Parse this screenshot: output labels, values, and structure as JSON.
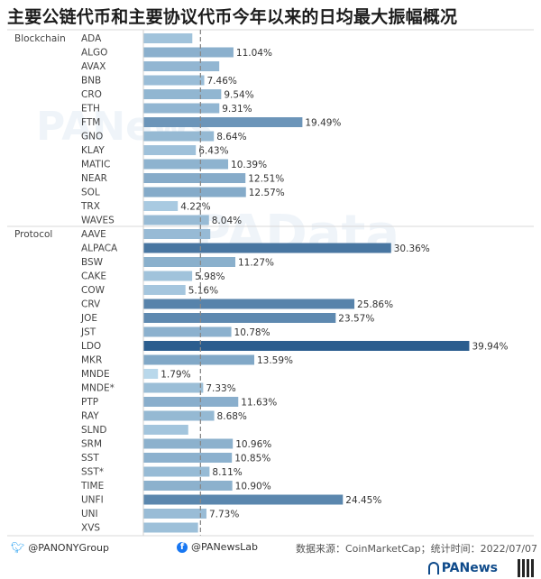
{
  "title": "主要公链代币和主要协议代币今年以来的日均最大振幅概况",
  "footer": {
    "twitter": "@PANONYGroup",
    "facebook": "@PANewsLab",
    "source": "数据来源：CoinMarketCap；统计时间：2022/07/07"
  },
  "brand": {
    "logo": "PANews"
  },
  "icons": {
    "twitter": "bird-icon",
    "facebook": "facebook-icon",
    "qr": "qr-code-icon"
  },
  "watermarks": [
    "PANews",
    "PAData"
  ],
  "colors": {
    "max": "#2b5d8e",
    "min": "#b9d8eb",
    "gridline": "#d9d9d9",
    "refline": "#888888"
  },
  "chart_data": {
    "type": "bar",
    "orientation": "horizontal",
    "title": "主要公链代币和主要协议代币今年以来的日均最大振幅概况",
    "reference_line": 7.0,
    "xlim": [
      0,
      40
    ],
    "groups": [
      {
        "name": "Blockchain",
        "items": [
          {
            "label": "ADA",
            "value": 6.0,
            "value_label": ""
          },
          {
            "label": "ALGO",
            "value": 11.04,
            "value_label": "11.04%"
          },
          {
            "label": "AVAX",
            "value": 9.3,
            "value_label": ""
          },
          {
            "label": "BNB",
            "value": 7.46,
            "value_label": "7.46%"
          },
          {
            "label": "CRO",
            "value": 9.54,
            "value_label": "9.54%"
          },
          {
            "label": "ETH",
            "value": 9.31,
            "value_label": "9.31%"
          },
          {
            "label": "FTM",
            "value": 19.49,
            "value_label": "19.49%"
          },
          {
            "label": "GNO",
            "value": 8.64,
            "value_label": "8.64%"
          },
          {
            "label": "KLAY",
            "value": 6.43,
            "value_label": "6.43%"
          },
          {
            "label": "MATIC",
            "value": 10.39,
            "value_label": "10.39%"
          },
          {
            "label": "NEAR",
            "value": 12.51,
            "value_label": "12.51%"
          },
          {
            "label": "SOL",
            "value": 12.57,
            "value_label": "12.57%"
          },
          {
            "label": "TRX",
            "value": 4.22,
            "value_label": "4.22%"
          },
          {
            "label": "WAVES",
            "value": 8.04,
            "value_label": "8.04%"
          }
        ]
      },
      {
        "name": "Protocol",
        "items": [
          {
            "label": "AAVE",
            "value": 8.2,
            "value_label": ""
          },
          {
            "label": "ALPACA",
            "value": 30.36,
            "value_label": "30.36%"
          },
          {
            "label": "BSW",
            "value": 11.27,
            "value_label": "11.27%"
          },
          {
            "label": "CAKE",
            "value": 5.98,
            "value_label": "5.98%"
          },
          {
            "label": "COW",
            "value": 5.16,
            "value_label": "5.16%"
          },
          {
            "label": "CRV",
            "value": 25.86,
            "value_label": "25.86%"
          },
          {
            "label": "JOE",
            "value": 23.57,
            "value_label": "23.57%"
          },
          {
            "label": "JST",
            "value": 10.78,
            "value_label": "10.78%"
          },
          {
            "label": "LDO",
            "value": 39.94,
            "value_label": "39.94%"
          },
          {
            "label": "MKR",
            "value": 13.59,
            "value_label": "13.59%"
          },
          {
            "label": "MNDE",
            "value": 1.79,
            "value_label": "1.79%"
          },
          {
            "label": "MNDE*",
            "value": 7.33,
            "value_label": "7.33%"
          },
          {
            "label": "PTP",
            "value": 11.63,
            "value_label": "11.63%"
          },
          {
            "label": "RAY",
            "value": 8.68,
            "value_label": "8.68%"
          },
          {
            "label": "SLND",
            "value": 5.5,
            "value_label": ""
          },
          {
            "label": "SRM",
            "value": 10.96,
            "value_label": "10.96%"
          },
          {
            "label": "SST",
            "value": 10.85,
            "value_label": "10.85%"
          },
          {
            "label": "SST*",
            "value": 8.11,
            "value_label": "8.11%"
          },
          {
            "label": "TIME",
            "value": 10.9,
            "value_label": "10.90%"
          },
          {
            "label": "UNFI",
            "value": 24.45,
            "value_label": "24.45%"
          },
          {
            "label": "UNI",
            "value": 7.73,
            "value_label": "7.73%"
          },
          {
            "label": "XVS",
            "value": 6.7,
            "value_label": ""
          }
        ]
      }
    ]
  }
}
